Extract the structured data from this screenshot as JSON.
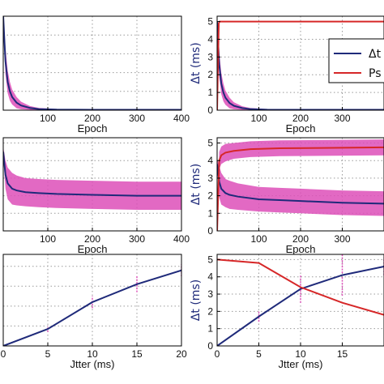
{
  "chart_data": [
    {
      "type": "line",
      "xlabel": "Epoch",
      "xlim": [
        0,
        400
      ],
      "ylim": [
        0,
        5
      ],
      "xticks": [
        100,
        200,
        300,
        400
      ],
      "yticks": [],
      "grid": true,
      "series": [
        {
          "color": "#1f2a7a",
          "x": [
            0,
            2,
            5,
            10,
            15,
            20,
            30,
            40,
            60,
            80,
            120,
            200,
            400
          ],
          "y": [
            5,
            4.0,
            2.6,
            1.5,
            1.0,
            0.7,
            0.4,
            0.25,
            0.12,
            0.06,
            0.03,
            0.02,
            0.02
          ],
          "band": [
            0.0,
            0.5,
            0.7,
            0.6,
            0.5,
            0.4,
            0.3,
            0.2,
            0.1,
            0.06,
            0.03,
            0.02,
            0.02
          ]
        }
      ]
    },
    {
      "type": "line",
      "xlabel": "Epoch",
      "ylabel": "Δt (ms)",
      "xlim": [
        0,
        400
      ],
      "ylim": [
        0,
        5.3
      ],
      "xticks": [
        100,
        200,
        300
      ],
      "yticks": [
        0,
        1,
        2,
        3,
        4,
        5
      ],
      "grid": true,
      "legend": {
        "position": "top-right",
        "entries": [
          "Δt",
          "Ps"
        ]
      },
      "series": [
        {
          "name": "Δt",
          "color": "#1f2a7a",
          "x": [
            0,
            2,
            5,
            10,
            15,
            20,
            30,
            40,
            60,
            80,
            120,
            200,
            400
          ],
          "y": [
            5,
            4.0,
            2.6,
            1.5,
            1.0,
            0.7,
            0.4,
            0.25,
            0.12,
            0.06,
            0.03,
            0.02,
            0.02
          ],
          "band": [
            0.0,
            0.5,
            0.7,
            0.6,
            0.5,
            0.4,
            0.3,
            0.2,
            0.1,
            0.06,
            0.03,
            0.02,
            0.02
          ]
        },
        {
          "name": "Ps",
          "color": "#d62728",
          "x": [
            0,
            2,
            4,
            6,
            400
          ],
          "y": [
            0,
            2.5,
            4.9,
            5.0,
            5.0
          ],
          "band": [
            0,
            0,
            0,
            0,
            0
          ]
        }
      ]
    },
    {
      "type": "line",
      "xlabel": "Epoch",
      "xlim": [
        0,
        400
      ],
      "ylim": [
        0,
        5.3
      ],
      "xticks": [
        100,
        200,
        300,
        400
      ],
      "yticks": [],
      "grid": true,
      "series": [
        {
          "color": "#1f2a7a",
          "x": [
            0,
            5,
            10,
            20,
            30,
            50,
            80,
            120,
            200,
            300,
            400
          ],
          "y": [
            4.5,
            3.2,
            2.7,
            2.4,
            2.3,
            2.2,
            2.15,
            2.1,
            2.05,
            2.0,
            2.0
          ],
          "band": [
            0.3,
            0.8,
            0.9,
            0.9,
            0.85,
            0.8,
            0.8,
            0.8,
            0.8,
            0.8,
            0.8
          ]
        }
      ]
    },
    {
      "type": "line",
      "xlabel": "Epoch",
      "ylabel": "Δt (ms)",
      "xlim": [
        0,
        400
      ],
      "ylim": [
        0,
        5.3
      ],
      "xticks": [
        100,
        200,
        300
      ],
      "yticks": [
        0,
        1,
        2,
        3,
        4,
        5
      ],
      "grid": true,
      "series": [
        {
          "color": "#1f2a7a",
          "x": [
            0,
            5,
            10,
            20,
            30,
            50,
            100,
            150,
            200,
            300,
            400
          ],
          "y": [
            3.8,
            2.8,
            2.4,
            2.15,
            2.05,
            1.95,
            1.8,
            1.75,
            1.7,
            1.6,
            1.55
          ],
          "band": [
            0.3,
            0.9,
            0.9,
            0.8,
            0.8,
            0.75,
            0.7,
            0.7,
            0.7,
            0.7,
            0.7
          ]
        },
        {
          "color": "#d62728",
          "x": [
            0,
            5,
            10,
            20,
            40,
            80,
            150,
            250,
            400
          ],
          "y": [
            0,
            4.0,
            4.3,
            4.45,
            4.55,
            4.65,
            4.7,
            4.72,
            4.75
          ],
          "band": [
            0,
            0.5,
            0.5,
            0.5,
            0.45,
            0.45,
            0.45,
            0.45,
            0.45
          ]
        }
      ]
    },
    {
      "type": "line",
      "xlabel": "Jtter (ms)",
      "xlim": [
        0,
        20
      ],
      "ylim": [
        0,
        4.6
      ],
      "xticks": [
        0,
        5,
        10,
        15,
        20
      ],
      "yticks": [],
      "grid": true,
      "series": [
        {
          "color": "#1f2a7a",
          "x": [
            0,
            5,
            10,
            15,
            20
          ],
          "y": [
            0,
            0.85,
            2.2,
            3.1,
            3.8
          ],
          "errors": [
            0,
            0.15,
            0.3,
            0.4,
            0.3
          ]
        }
      ]
    },
    {
      "type": "line",
      "xlabel": "Jtter (ms)",
      "ylabel": "Δt (ms)",
      "xlim": [
        0,
        20
      ],
      "ylim": [
        0,
        5.3
      ],
      "xticks": [
        0,
        5,
        10,
        15
      ],
      "yticks": [
        0,
        1,
        2,
        3,
        4,
        5
      ],
      "grid": true,
      "series": [
        {
          "color": "#1f2a7a",
          "x": [
            0,
            5,
            10,
            15,
            20
          ],
          "y": [
            0,
            1.7,
            3.3,
            4.1,
            4.6
          ],
          "errors": [
            0,
            0.3,
            0.8,
            1.2,
            0.5
          ]
        },
        {
          "color": "#d62728",
          "x": [
            0,
            5,
            10,
            15,
            20
          ],
          "y": [
            5.0,
            4.8,
            3.4,
            2.5,
            1.8
          ],
          "errors": [
            0,
            0,
            0,
            0,
            0
          ]
        }
      ]
    }
  ]
}
